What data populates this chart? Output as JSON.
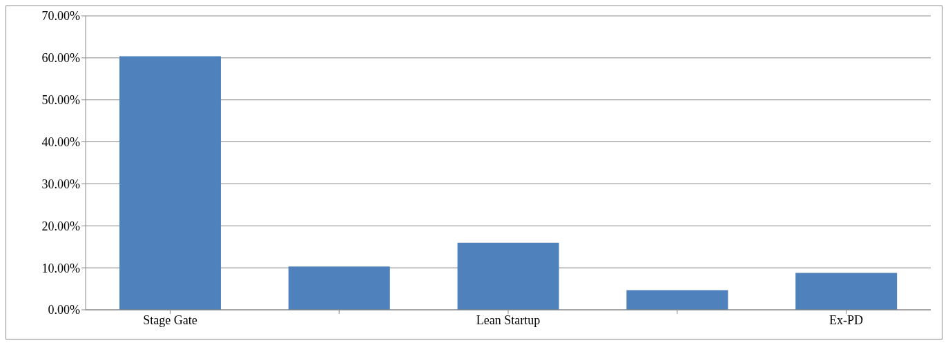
{
  "chart_data": {
    "type": "bar",
    "categories": [
      "Stage Gate",
      null,
      "Lean Startup",
      null,
      "Ex-PD"
    ],
    "values": [
      60.4,
      10.3,
      16.0,
      4.7,
      8.8
    ],
    "color": "#4f81bd",
    "ylim": [
      0,
      70
    ],
    "yticks": [
      {
        "value": 0,
        "label": "0.00%"
      },
      {
        "value": 10,
        "label": "10.00%"
      },
      {
        "value": 20,
        "label": "20.00%"
      },
      {
        "value": 30,
        "label": "30.00%"
      },
      {
        "value": 40,
        "label": "40.00%"
      },
      {
        "value": 50,
        "label": "50.00%"
      },
      {
        "value": 60,
        "label": "60.00%"
      },
      {
        "value": 70,
        "label": "70.00%"
      }
    ],
    "grid": "y"
  }
}
